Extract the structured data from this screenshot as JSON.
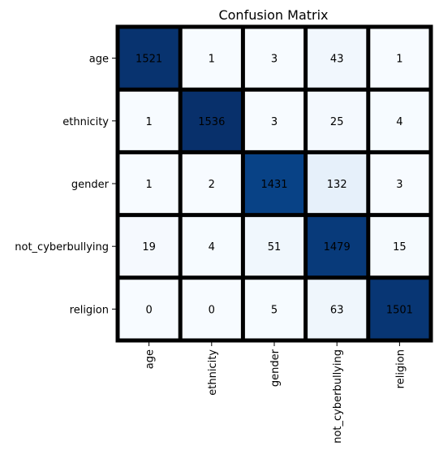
{
  "chart_data": {
    "type": "heatmap",
    "title": "Confusion Matrix",
    "xlabel": "",
    "ylabel": "",
    "x_categories": [
      "age",
      "ethnicity",
      "gender",
      "not_cyberbullying",
      "religion"
    ],
    "y_categories": [
      "age",
      "ethnicity",
      "gender",
      "not_cyberbullying",
      "religion"
    ],
    "values": [
      [
        1521,
        1,
        3,
        43,
        1
      ],
      [
        1,
        1536,
        3,
        25,
        4
      ],
      [
        1,
        2,
        1431,
        132,
        3
      ],
      [
        19,
        4,
        51,
        1479,
        15
      ],
      [
        0,
        0,
        5,
        63,
        1501
      ]
    ],
    "value_range": [
      0,
      1536
    ],
    "colormap": "Blues",
    "colorbar": false,
    "cell_border_color": "#000000",
    "low_color": "#f7fbff",
    "high_color": "#08306b",
    "text_dark_color": "#262626",
    "text_light_color": "#ffffff"
  }
}
